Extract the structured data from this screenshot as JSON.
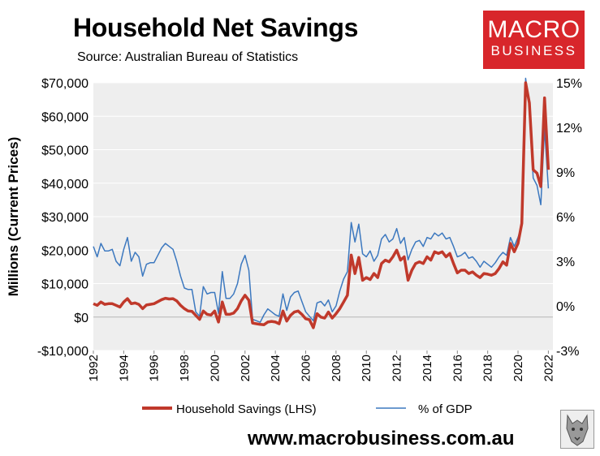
{
  "header": {
    "title": "Household Net Savings",
    "source": "Source: Australian Bureau of Statistics",
    "logo_line1": "MACRO",
    "logo_line2": "BUSINESS"
  },
  "footer": {
    "url": "www.macrobusiness.com.au"
  },
  "colors": {
    "savings": "#c0392b",
    "gdp": "#3c78bf",
    "plot_bg": "#eeeeee",
    "logo_bg": "#d8262b"
  },
  "chart_data": {
    "type": "line",
    "title": "Household Net Savings",
    "ylabel": "Millions (Current Prices)",
    "y2label": "",
    "ylim": [
      -10000,
      70000
    ],
    "y2lim": [
      -3,
      15
    ],
    "xlim": [
      1992,
      2022.3
    ],
    "yticks": [
      -10000,
      0,
      10000,
      20000,
      30000,
      40000,
      50000,
      60000,
      70000
    ],
    "ytick_labels": [
      "-$10,000",
      "$0",
      "$10,000",
      "$20,000",
      "$30,000",
      "$40,000",
      "$50,000",
      "$60,000",
      "$70,000"
    ],
    "y2ticks": [
      -3,
      0,
      3,
      6,
      9,
      12,
      15
    ],
    "y2tick_labels": [
      "-3%",
      "0%",
      "3%",
      "6%",
      "9%",
      "12%",
      "15%"
    ],
    "xticks": [
      1992,
      1994,
      1996,
      1998,
      2000,
      2002,
      2004,
      2006,
      2008,
      2010,
      2012,
      2014,
      2016,
      2018,
      2020,
      2022
    ],
    "xtick_labels": [
      "1992",
      "1994",
      "1996",
      "1998",
      "2000",
      "2002",
      "2004",
      "2006",
      "2008",
      "2010",
      "2012",
      "2014",
      "2016",
      "2018",
      "2020",
      "2022"
    ],
    "legend_position": "bottom",
    "series": [
      {
        "name": "Household Savings (LHS)",
        "axis": "left",
        "x": [
          1992.0,
          1992.25,
          1992.5,
          1992.75,
          1993.0,
          1993.25,
          1993.5,
          1993.75,
          1994.0,
          1994.25,
          1994.5,
          1994.75,
          1995.0,
          1995.25,
          1995.5,
          1995.75,
          1996.0,
          1996.25,
          1996.5,
          1996.75,
          1997.0,
          1997.25,
          1997.5,
          1997.75,
          1998.0,
          1998.25,
          1998.5,
          1998.75,
          1999.0,
          1999.25,
          1999.5,
          1999.75,
          2000.0,
          2000.25,
          2000.5,
          2000.75,
          2001.0,
          2001.25,
          2001.5,
          2001.75,
          2002.0,
          2002.25,
          2002.5,
          2002.75,
          2003.0,
          2003.25,
          2003.5,
          2003.75,
          2004.0,
          2004.25,
          2004.5,
          2004.75,
          2005.0,
          2005.25,
          2005.5,
          2005.75,
          2006.0,
          2006.25,
          2006.5,
          2006.75,
          2007.0,
          2007.25,
          2007.5,
          2007.75,
          2008.0,
          2008.25,
          2008.5,
          2008.75,
          2009.0,
          2009.25,
          2009.5,
          2009.75,
          2010.0,
          2010.25,
          2010.5,
          2010.75,
          2011.0,
          2011.25,
          2011.5,
          2011.75,
          2012.0,
          2012.25,
          2012.5,
          2012.75,
          2013.0,
          2013.25,
          2013.5,
          2013.75,
          2014.0,
          2014.25,
          2014.5,
          2014.75,
          2015.0,
          2015.25,
          2015.5,
          2015.75,
          2016.0,
          2016.25,
          2016.5,
          2016.75,
          2017.0,
          2017.25,
          2017.5,
          2017.75,
          2018.0,
          2018.25,
          2018.5,
          2018.75,
          2019.0,
          2019.25,
          2019.5,
          2019.75,
          2020.0,
          2020.25,
          2020.5,
          2020.75,
          2021.0,
          2021.25,
          2021.5,
          2021.75,
          2022.0
        ],
        "values": [
          4000,
          3500,
          4500,
          3800,
          4000,
          4000,
          3500,
          3000,
          4500,
          5500,
          4000,
          4200,
          3800,
          2500,
          3600,
          3800,
          4000,
          4600,
          5200,
          5600,
          5400,
          5500,
          4800,
          3500,
          2500,
          1800,
          1700,
          500,
          -700,
          1800,
          800,
          600,
          1800,
          -1500,
          4500,
          800,
          800,
          1200,
          2500,
          4800,
          6500,
          5000,
          -1800,
          -2000,
          -2200,
          -2300,
          -1500,
          -1300,
          -1500,
          -2000,
          1800,
          -1200,
          500,
          1500,
          1800,
          800,
          -500,
          -800,
          -3200,
          1000,
          0,
          -300,
          1500,
          -300,
          1000,
          2500,
          4500,
          6500,
          18500,
          13000,
          17800,
          11000,
          11800,
          11200,
          13000,
          11800,
          16000,
          17000,
          16500,
          18000,
          20000,
          17000,
          18000,
          11000,
          14000,
          16000,
          16500,
          16000,
          18000,
          17000,
          19500,
          19000,
          19500,
          18000,
          19000,
          16000,
          13200,
          14000,
          14000,
          13000,
          13500,
          12500,
          11800,
          13000,
          12800,
          12500,
          13000,
          14500,
          16500,
          15500,
          22000,
          19500,
          22000,
          28000,
          70000,
          64000,
          44000,
          43000,
          39000,
          65500,
          44000
        ]
      },
      {
        "name": "% of GDP",
        "axis": "right",
        "x": [
          1992.0,
          1992.25,
          1992.5,
          1992.75,
          1993.0,
          1993.25,
          1993.5,
          1993.75,
          1994.0,
          1994.25,
          1994.5,
          1994.75,
          1995.0,
          1995.25,
          1995.5,
          1995.75,
          1996.0,
          1996.25,
          1996.5,
          1996.75,
          1997.0,
          1997.25,
          1997.5,
          1997.75,
          1998.0,
          1998.25,
          1998.5,
          1998.75,
          1999.0,
          1999.25,
          1999.5,
          1999.75,
          2000.0,
          2000.25,
          2000.5,
          2000.75,
          2001.0,
          2001.25,
          2001.5,
          2001.75,
          2002.0,
          2002.25,
          2002.5,
          2002.75,
          2003.0,
          2003.25,
          2003.5,
          2003.75,
          2004.0,
          2004.25,
          2004.5,
          2004.75,
          2005.0,
          2005.25,
          2005.5,
          2005.75,
          2006.0,
          2006.25,
          2006.5,
          2006.75,
          2007.0,
          2007.25,
          2007.5,
          2007.75,
          2008.0,
          2008.25,
          2008.5,
          2008.75,
          2009.0,
          2009.25,
          2009.5,
          2009.75,
          2010.0,
          2010.25,
          2010.5,
          2010.75,
          2011.0,
          2011.25,
          2011.5,
          2011.75,
          2012.0,
          2012.25,
          2012.5,
          2012.75,
          2013.0,
          2013.25,
          2013.5,
          2013.75,
          2014.0,
          2014.25,
          2014.5,
          2014.75,
          2015.0,
          2015.25,
          2015.5,
          2015.75,
          2016.0,
          2016.25,
          2016.5,
          2016.75,
          2017.0,
          2017.25,
          2017.5,
          2017.75,
          2018.0,
          2018.25,
          2018.5,
          2018.75,
          2019.0,
          2019.25,
          2019.5,
          2019.75,
          2020.0,
          2020.25,
          2020.5,
          2020.75,
          2021.0,
          2021.25,
          2021.5,
          2021.75,
          2022.0
        ],
        "values": [
          4.0,
          3.3,
          4.2,
          3.7,
          3.7,
          3.8,
          3.0,
          2.7,
          3.8,
          4.6,
          3.0,
          3.6,
          3.3,
          2.0,
          2.8,
          2.9,
          2.9,
          3.4,
          3.9,
          4.2,
          4.0,
          3.8,
          3.0,
          2.0,
          1.2,
          1.1,
          1.1,
          -0.4,
          -0.7,
          1.3,
          0.8,
          0.9,
          0.9,
          -0.5,
          2.3,
          0.5,
          0.5,
          0.8,
          1.5,
          2.8,
          3.4,
          2.4,
          -0.9,
          -1.0,
          -1.1,
          -0.6,
          -0.2,
          -0.4,
          -0.6,
          -0.7,
          0.8,
          -0.3,
          0.6,
          0.9,
          1.0,
          0.3,
          -0.4,
          -0.7,
          -1.0,
          0.2,
          0.3,
          0.0,
          0.4,
          -0.4,
          0.0,
          1.0,
          1.8,
          2.3,
          5.6,
          4.3,
          5.5,
          3.5,
          3.3,
          3.7,
          3.0,
          3.4,
          4.5,
          4.8,
          4.3,
          4.5,
          5.2,
          4.2,
          4.6,
          3.1,
          3.8,
          4.3,
          4.4,
          4.0,
          4.6,
          4.5,
          4.9,
          4.7,
          4.9,
          4.5,
          4.6,
          4.0,
          3.3,
          3.4,
          3.6,
          3.2,
          3.3,
          3.0,
          2.6,
          3.0,
          2.8,
          2.6,
          2.9,
          3.3,
          3.6,
          3.4,
          4.6,
          4.0,
          4.6,
          5.4,
          15.3,
          13.4,
          8.6,
          8.1,
          6.8,
          11.9,
          7.9
        ]
      }
    ]
  }
}
